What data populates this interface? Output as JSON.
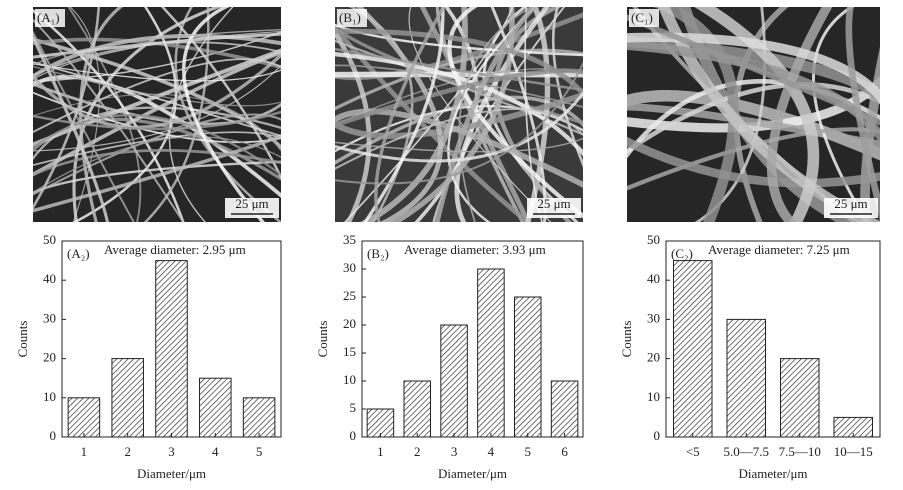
{
  "images": [
    {
      "label": "(A₁)",
      "scale_bar": "25 μm"
    },
    {
      "label": "(B₁)",
      "scale_bar": "25 μm"
    },
    {
      "label": "(C₁)",
      "scale_bar": "25 μm"
    }
  ],
  "chart_data": [
    {
      "type": "bar",
      "panel_label": "(A₂)",
      "annotation": "Average diameter: 2.95 μm",
      "categories": [
        "1",
        "2",
        "3",
        "4",
        "5"
      ],
      "values": [
        10,
        20,
        45,
        15,
        10
      ],
      "ylim": [
        0,
        50
      ],
      "yticks": [
        0,
        10,
        20,
        30,
        40,
        50
      ],
      "xlabel": "Diameter/μm",
      "ylabel": "Counts",
      "color": "#333333"
    },
    {
      "type": "bar",
      "panel_label": "(B₂)",
      "annotation": "Average diameter: 3.93 μm",
      "categories": [
        "1",
        "2",
        "3",
        "4",
        "5",
        "6"
      ],
      "values": [
        5,
        10,
        20,
        30,
        25,
        10
      ],
      "ylim": [
        0,
        35
      ],
      "yticks": [
        0,
        5,
        10,
        15,
        20,
        25,
        30,
        35
      ],
      "xlabel": "Diameter/μm",
      "ylabel": "Counts",
      "color": "#333333"
    },
    {
      "type": "bar",
      "panel_label": "(C₂)",
      "annotation": "Average diameter: 7.25 μm",
      "categories": [
        "<5",
        "5.0—7.5",
        "7.5—10",
        "10—15"
      ],
      "values": [
        45,
        30,
        20,
        5
      ],
      "ylim": [
        0,
        50
      ],
      "yticks": [
        0,
        10,
        20,
        30,
        40,
        50
      ],
      "xlabel": "Diameter/μm",
      "ylabel": "Counts",
      "color": "#333333"
    }
  ]
}
